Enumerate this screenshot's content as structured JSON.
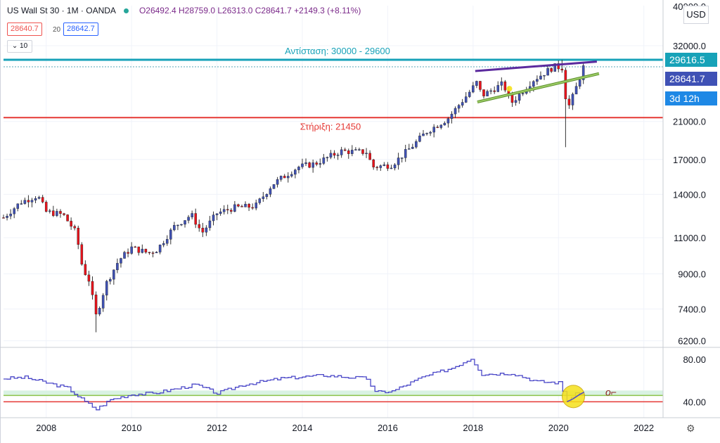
{
  "header": {
    "symbol": "US Wall St 30 · 1M · OANDA",
    "ohlc": "O26492.4 H28759.0 L26313.0 C28641.7 +2149.3 (+8.11%)",
    "sell_price": "28640.7",
    "spread": "20",
    "buy_price": "28642.7",
    "volume_box": "10"
  },
  "price_axis": {
    "currency": "USD",
    "top_partial_label": "40000.0",
    "resistance_tag": "29616.5",
    "last_price_tag": "28641.7",
    "countdown_tag": "3d 12h"
  },
  "colors": {
    "up_candle": "#3f51b5",
    "down_candle": "#e8131c",
    "resistance_line": "#17a2b8",
    "support_line": "#e53935",
    "rsi_line": "#4a47c8",
    "trendline_upper": "#5b2a9e",
    "trendline_lower": "#9ccc65",
    "highlight": "#f5e11b"
  },
  "gear_icon": "gear-icon",
  "chart_data": [
    {
      "type": "candlestick",
      "title": "US Wall St 30 · 1M · OANDA",
      "scale": "log",
      "ylim": [
        6000,
        40000
      ],
      "xlim": [
        2007.0,
        2022.45
      ],
      "x_ticks": [
        "2008",
        "2010",
        "2012",
        "2014",
        "2016",
        "2018",
        "2020",
        "2022"
      ],
      "y_ticks": [
        "6200.0",
        "7400.0",
        "9000.0",
        "11000.0",
        "14000.0",
        "17000.0",
        "21000.0",
        "32000.0"
      ],
      "annotations": {
        "resistance_label": "Αντίσταση:  30000 - 29600",
        "resistance_value": 29600,
        "support_label": "Στήριξη: 21450",
        "support_value": 21450
      },
      "approx_monthly_close_path": [
        [
          2007.0,
          12300
        ],
        [
          2007.4,
          13400
        ],
        [
          2007.8,
          13900
        ],
        [
          2008.0,
          12700
        ],
        [
          2008.4,
          12500
        ],
        [
          2008.7,
          11300
        ],
        [
          2008.85,
          9300
        ],
        [
          2009.0,
          8700
        ],
        [
          2009.17,
          7100
        ],
        [
          2009.4,
          8500
        ],
        [
          2009.7,
          9700
        ],
        [
          2010.0,
          10400
        ],
        [
          2010.4,
          10100
        ],
        [
          2010.6,
          10300
        ],
        [
          2011.0,
          11700
        ],
        [
          2011.4,
          12500
        ],
        [
          2011.65,
          11300
        ],
        [
          2012.0,
          12600
        ],
        [
          2012.4,
          13000
        ],
        [
          2012.9,
          13100
        ],
        [
          2013.3,
          14800
        ],
        [
          2013.9,
          16300
        ],
        [
          2014.3,
          16600
        ],
        [
          2014.9,
          17800
        ],
        [
          2015.5,
          17700
        ],
        [
          2015.65,
          16300
        ],
        [
          2016.1,
          16500
        ],
        [
          2016.6,
          18400
        ],
        [
          2016.9,
          19800
        ],
        [
          2017.4,
          21300
        ],
        [
          2017.9,
          24600
        ],
        [
          2018.1,
          26200
        ],
        [
          2018.2,
          24200
        ],
        [
          2018.7,
          25900
        ],
        [
          2018.9,
          23300
        ],
        [
          2019.4,
          26400
        ],
        [
          2019.9,
          28500
        ],
        [
          2020.1,
          28300
        ],
        [
          2020.2,
          22300
        ],
        [
          2020.35,
          24300
        ],
        [
          2020.6,
          28641.7
        ]
      ],
      "approx_extremes": {
        "low_2009": 6500,
        "high_2020": 29600,
        "low_2020": 18200
      }
    },
    {
      "type": "line",
      "name": "RSI",
      "ylim": [
        25,
        90
      ],
      "y_ticks": [
        "80.00",
        "40.00"
      ],
      "reference_levels": [
        46,
        40
      ],
      "x": [
        2007.0,
        2007.5,
        2008.0,
        2008.5,
        2008.9,
        2009.17,
        2009.5,
        2010.0,
        2010.5,
        2011.0,
        2011.5,
        2012.0,
        2012.6,
        2013.5,
        2014.5,
        2015.5,
        2015.7,
        2016.1,
        2016.8,
        2017.5,
        2017.95,
        2018.2,
        2018.9,
        2019.5,
        2020.0,
        2020.2,
        2020.4,
        2020.6
      ],
      "values": [
        62,
        63,
        58,
        53,
        40,
        33,
        42,
        47,
        48,
        52,
        56,
        48,
        56,
        62,
        65,
        62,
        49,
        50,
        63,
        72,
        81,
        66,
        67,
        59,
        58,
        42,
        47,
        49
      ]
    }
  ]
}
